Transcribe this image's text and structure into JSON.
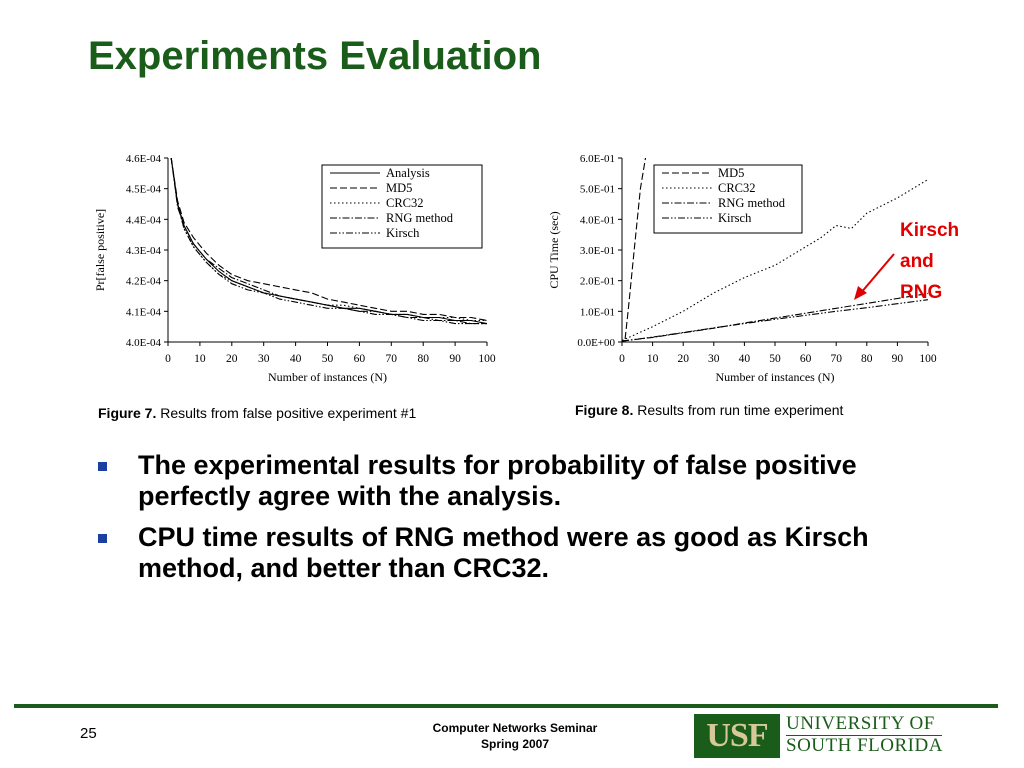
{
  "slide": {
    "title": "Experiments Evaluation",
    "annotation_lines": [
      "Kirsch",
      "and",
      "RNG"
    ],
    "bullets": [
      "The experimental results for probability of false positive perfectly agree with the analysis.",
      "CPU time results of RNG method were as good as Kirsch method, and better than CRC32."
    ],
    "page_number": "25",
    "footer_line1": "Computer Networks Seminar",
    "footer_line2": "Spring 2007",
    "logo_abbrev": "USF",
    "logo_line1": "UNIVERSITY OF",
    "logo_line2": "SOUTH FLORIDA",
    "colors": {
      "title": "#1a5c1a",
      "annotation": "#e00000",
      "bullet": "#1a3fa0",
      "footer_rule": "#1a5c1a"
    }
  },
  "captions": [
    {
      "label": "Figure 7.",
      "text": " Results from false positive experiment #1"
    },
    {
      "label": "Figure 8.",
      "text": " Results from run time experiment"
    }
  ],
  "chart_data": [
    {
      "type": "line",
      "ylabel": "Pr[false positive]",
      "xlabel": "Number of instances (N)",
      "xlim": [
        0,
        100
      ],
      "ylim": [
        0.0004,
        0.00046
      ],
      "x_ticks": [
        "0",
        "10",
        "20",
        "30",
        "40",
        "50",
        "60",
        "70",
        "80",
        "90",
        "100"
      ],
      "y_ticks": [
        "4.6E-04",
        "4.5E-04",
        "4.4E-04",
        "4.3E-04",
        "4.2E-04",
        "4.1E-04",
        "4.0E-04"
      ],
      "legend_position": "top-right",
      "x": [
        1,
        3,
        5,
        8,
        12,
        16,
        20,
        25,
        30,
        35,
        40,
        45,
        50,
        55,
        60,
        65,
        70,
        75,
        80,
        85,
        90,
        95,
        100
      ],
      "series": [
        {
          "name": "Analysis",
          "dash": "solid",
          "values": [
            0.00046,
            0.000445,
            0.000438,
            0.000432,
            0.000427,
            0.000423,
            0.00042,
            0.000418,
            0.000416,
            0.000415,
            0.000414,
            0.000413,
            0.000412,
            0.000411,
            0.000411,
            0.00041,
            0.000409,
            0.000409,
            0.000408,
            0.000408,
            0.000407,
            0.000407,
            0.000406
          ]
        },
        {
          "name": "MD5",
          "dash": "dash",
          "values": [
            0.00046,
            0.000446,
            0.000439,
            0.000434,
            0.000429,
            0.000425,
            0.000422,
            0.00042,
            0.000419,
            0.000418,
            0.000417,
            0.000416,
            0.000414,
            0.000413,
            0.000412,
            0.000411,
            0.00041,
            0.00041,
            0.000409,
            0.000409,
            0.000408,
            0.000408,
            0.000407
          ]
        },
        {
          "name": "CRC32",
          "dash": "dot",
          "values": [
            0.00046,
            0.000445,
            0.000437,
            0.000431,
            0.000426,
            0.000422,
            0.00042,
            0.000418,
            0.000416,
            0.000415,
            0.000414,
            0.000413,
            0.000412,
            0.000412,
            0.000411,
            0.00041,
            0.000409,
            0.000409,
            0.000408,
            0.000408,
            0.000408,
            0.000407,
            0.000407
          ]
        },
        {
          "name": "RNG method",
          "dash": "dashdot",
          "values": [
            0.00046,
            0.000444,
            0.000438,
            0.000432,
            0.000427,
            0.000424,
            0.000421,
            0.000419,
            0.000417,
            0.000415,
            0.000414,
            0.000413,
            0.000412,
            0.000411,
            0.00041,
            0.00041,
            0.000409,
            0.000408,
            0.000408,
            0.000407,
            0.000407,
            0.000406,
            0.000406
          ]
        },
        {
          "name": "Kirsch",
          "dash": "dashdotdot",
          "values": [
            0.00046,
            0.000445,
            0.000437,
            0.000431,
            0.000426,
            0.000422,
            0.000419,
            0.000417,
            0.000416,
            0.000414,
            0.000413,
            0.000412,
            0.000411,
            0.000411,
            0.00041,
            0.000409,
            0.000409,
            0.000408,
            0.000407,
            0.000407,
            0.000406,
            0.000406,
            0.000406
          ]
        }
      ]
    },
    {
      "type": "line",
      "ylabel": "CPU Time (sec)",
      "xlabel": "Number of instances (N)",
      "xlim": [
        0,
        100
      ],
      "ylim": [
        0.0,
        0.6
      ],
      "x_ticks": [
        "0",
        "10",
        "20",
        "30",
        "40",
        "50",
        "60",
        "70",
        "80",
        "90",
        "100"
      ],
      "y_ticks": [
        "6.0E-01",
        "5.0E-01",
        "4.0E-01",
        "3.0E-01",
        "2.0E-01",
        "1.0E-01",
        "0.0E+00"
      ],
      "legend_position": "top-left",
      "series": [
        {
          "name": "MD5",
          "dash": "dash",
          "x": [
            1,
            2,
            4,
            6,
            8
          ],
          "values": [
            0.01,
            0.1,
            0.3,
            0.5,
            0.62
          ]
        },
        {
          "name": "CRC32",
          "dash": "dot",
          "x": [
            0,
            10,
            20,
            30,
            40,
            50,
            60,
            65,
            70,
            75,
            80,
            90,
            100
          ],
          "values": [
            0.005,
            0.05,
            0.1,
            0.16,
            0.21,
            0.25,
            0.31,
            0.34,
            0.38,
            0.37,
            0.42,
            0.47,
            0.53
          ]
        },
        {
          "name": "RNG method",
          "dash": "dashdot",
          "x": [
            0,
            10,
            20,
            30,
            40,
            50,
            60,
            70,
            80,
            90,
            100
          ],
          "values": [
            0.003,
            0.015,
            0.03,
            0.045,
            0.062,
            0.078,
            0.094,
            0.11,
            0.126,
            0.142,
            0.158
          ]
        },
        {
          "name": "Kirsch",
          "dash": "dashdotdot",
          "x": [
            0,
            10,
            20,
            30,
            40,
            50,
            60,
            70,
            80,
            90,
            100
          ],
          "values": [
            0.003,
            0.016,
            0.031,
            0.046,
            0.06,
            0.074,
            0.087,
            0.1,
            0.112,
            0.125,
            0.138
          ]
        }
      ]
    }
  ]
}
